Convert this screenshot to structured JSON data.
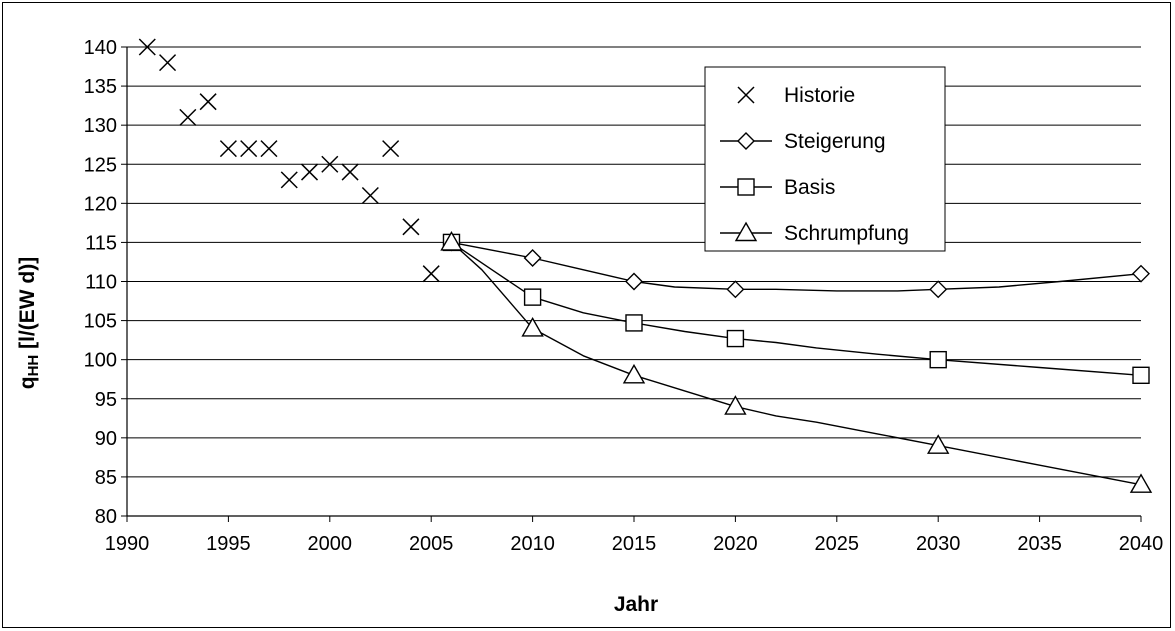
{
  "chart_data": {
    "type": "line",
    "xlabel": "Jahr",
    "ylabel": "q",
    "ylabel_sub": "HH",
    "ylabel_unit": " [l/(EW d)]",
    "xlim": [
      1990,
      2040
    ],
    "ylim": [
      80,
      140
    ],
    "x_ticks": [
      1990,
      1995,
      2000,
      2005,
      2010,
      2015,
      2020,
      2025,
      2030,
      2035,
      2040
    ],
    "y_ticks": [
      80,
      85,
      90,
      95,
      100,
      105,
      110,
      115,
      120,
      125,
      130,
      135,
      140
    ],
    "grid": "horizontal",
    "legend_position": "upper-right inside plot",
    "series": [
      {
        "name": "Historie",
        "marker": "x",
        "line": false,
        "points": [
          [
            1991,
            140
          ],
          [
            1992,
            138
          ],
          [
            1993,
            131
          ],
          [
            1994,
            133
          ],
          [
            1995,
            127
          ],
          [
            1996,
            127
          ],
          [
            1997,
            127
          ],
          [
            1998,
            123
          ],
          [
            1999,
            124
          ],
          [
            2000,
            125
          ],
          [
            2001,
            124
          ],
          [
            2002,
            121
          ],
          [
            2003,
            127
          ],
          [
            2004,
            117
          ],
          [
            2005,
            111
          ],
          [
            2006,
            115
          ]
        ]
      },
      {
        "name": "Steigerung",
        "marker": "diamond",
        "line": true,
        "points": [
          [
            2006,
            115
          ],
          [
            2010,
            113
          ],
          [
            2015,
            110
          ],
          [
            2020,
            109
          ],
          [
            2030,
            109
          ],
          [
            2040,
            111
          ]
        ],
        "curve": [
          [
            2006,
            115
          ],
          [
            2008,
            114
          ],
          [
            2010,
            113
          ],
          [
            2012,
            111.8
          ],
          [
            2014,
            110.6
          ],
          [
            2015,
            110
          ],
          [
            2017,
            109.3
          ],
          [
            2020,
            109
          ],
          [
            2022,
            109
          ],
          [
            2025,
            108.8
          ],
          [
            2028,
            108.8
          ],
          [
            2030,
            109
          ],
          [
            2033,
            109.3
          ],
          [
            2036,
            110
          ],
          [
            2040,
            111
          ]
        ]
      },
      {
        "name": "Basis",
        "marker": "square",
        "line": true,
        "points": [
          [
            2006,
            115
          ],
          [
            2010,
            108
          ],
          [
            2015,
            104.7
          ],
          [
            2020,
            102.7
          ],
          [
            2030,
            100
          ],
          [
            2040,
            98
          ]
        ],
        "curve": [
          [
            2006,
            115
          ],
          [
            2008,
            111.5
          ],
          [
            2010,
            108
          ],
          [
            2012.5,
            106
          ],
          [
            2015,
            104.7
          ],
          [
            2017.5,
            103.6
          ],
          [
            2020,
            102.7
          ],
          [
            2022,
            102.2
          ],
          [
            2024,
            101.5
          ],
          [
            2027,
            100.7
          ],
          [
            2030,
            100
          ],
          [
            2035,
            99
          ],
          [
            2040,
            98
          ]
        ]
      },
      {
        "name": "Schrumpfung",
        "marker": "triangle",
        "line": true,
        "points": [
          [
            2006,
            115
          ],
          [
            2010,
            104
          ],
          [
            2015,
            98
          ],
          [
            2020,
            94
          ],
          [
            2030,
            89
          ],
          [
            2040,
            84
          ]
        ],
        "curve": [
          [
            2006,
            115
          ],
          [
            2007.5,
            111.5
          ],
          [
            2009,
            107
          ],
          [
            2010,
            104
          ],
          [
            2012.5,
            100.5
          ],
          [
            2015,
            98
          ],
          [
            2017.5,
            96
          ],
          [
            2020,
            94
          ],
          [
            2022,
            92.8
          ],
          [
            2024,
            92
          ],
          [
            2027,
            90.5
          ],
          [
            2030,
            89
          ],
          [
            2035,
            86.5
          ],
          [
            2040,
            84
          ]
        ]
      }
    ]
  }
}
